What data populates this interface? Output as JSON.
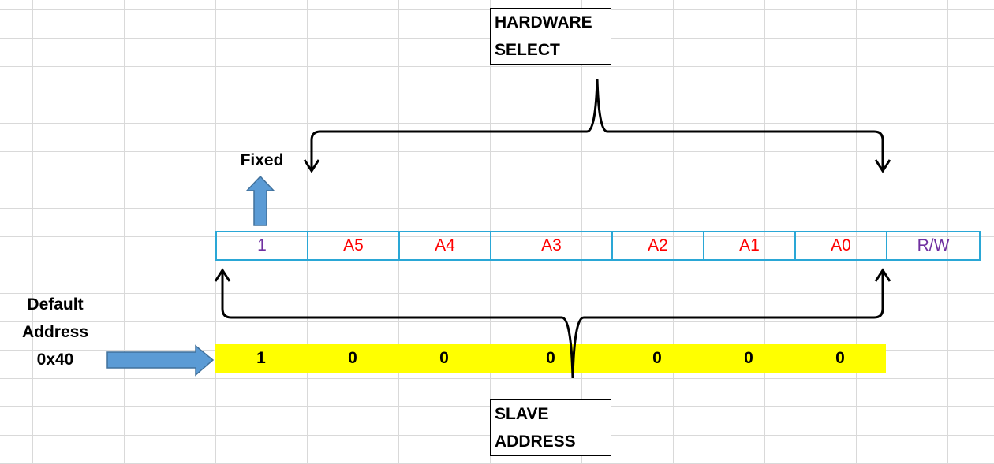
{
  "hardware_select": {
    "line1": "HARDWARE",
    "line2": "SELECT"
  },
  "slave_address": {
    "line1": "SLAVE",
    "line2": "ADDRESS"
  },
  "fixed_label": "Fixed",
  "default_address": {
    "line1": "Default",
    "line2": "Address",
    "line3": "0x40"
  },
  "bits": [
    {
      "label": "1",
      "color": "#7030a0"
    },
    {
      "label": "A5",
      "color": "#ff0000"
    },
    {
      "label": "A4",
      "color": "#ff0000"
    },
    {
      "label": "A3",
      "color": "#ff0000"
    },
    {
      "label": "A2",
      "color": "#ff0000"
    },
    {
      "label": "A1",
      "color": "#ff0000"
    },
    {
      "label": "A0",
      "color": "#ff0000"
    },
    {
      "label": "R/W",
      "color": "#7030a0"
    }
  ],
  "values": [
    "1",
    "0",
    "0",
    "0",
    "0",
    "0",
    "0"
  ],
  "colors": {
    "cell_border": "#2aa7d6",
    "value_highlight": "#ffff00",
    "arrow_fill": "#5b9bd5",
    "arrow_stroke": "#41719c"
  }
}
